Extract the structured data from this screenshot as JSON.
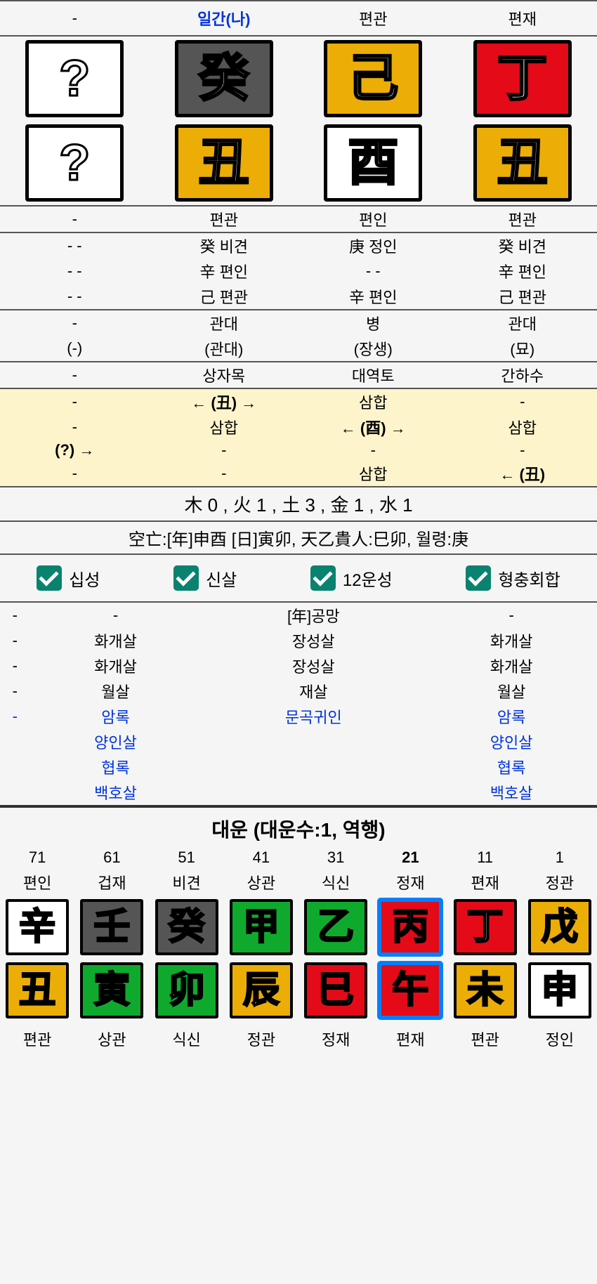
{
  "headers": [
    "-",
    "일간(나)",
    "편관",
    "편재"
  ],
  "pillars_top": [
    {
      "char": "?",
      "cls": "bg-white"
    },
    {
      "char": "癸",
      "cls": "bg-gray"
    },
    {
      "char": "己",
      "cls": "bg-yellow"
    },
    {
      "char": "丁",
      "cls": "bg-red"
    }
  ],
  "pillars_bot": [
    {
      "char": "?",
      "cls": "bg-white"
    },
    {
      "char": "丑",
      "cls": "bg-yellow"
    },
    {
      "char": "酉",
      "cls": "bg-white"
    },
    {
      "char": "丑",
      "cls": "bg-yellow"
    }
  ],
  "r1": [
    "-",
    "편관",
    "편인",
    "편관"
  ],
  "r2a": [
    "- -",
    "癸 비견",
    "庚 정인",
    "癸 비견"
  ],
  "r2b": [
    "- -",
    "辛 편인",
    "- -",
    "辛 편인"
  ],
  "r2c": [
    "- -",
    "己 편관",
    "辛 편인",
    "己 편관"
  ],
  "r3a": [
    "-",
    "관대",
    "병",
    "관대"
  ],
  "r3b": [
    "(-)",
    "(관대)",
    "(장생)",
    "(묘)"
  ],
  "r4": [
    "-",
    "상자목",
    "대역토",
    "간하수"
  ],
  "y1": [
    "-",
    "← (丑) →",
    "삼합",
    "-"
  ],
  "y2": [
    "-",
    "삼합",
    "← (酉) →",
    "삼합"
  ],
  "y3": [
    "(?) →",
    "-",
    "-",
    "-"
  ],
  "y4": [
    "-",
    "-",
    "삼합",
    "← (丑)"
  ],
  "elements": "木 0 , 火 1 , 土 3 , 金 1 , 水 1",
  "gongmang": "空亡:[年]申酉 [日]寅卯, 天乙貴人:巳卯, 월령:庚",
  "checks": [
    "십성",
    "신살",
    "12운성",
    "형충회합"
  ],
  "s1": [
    "-",
    "-",
    "[年]공망",
    "-"
  ],
  "s2": [
    "-",
    "화개살",
    "장성살",
    "화개살"
  ],
  "s3": [
    "-",
    "화개살",
    "장성살",
    "화개살"
  ],
  "s4": [
    "-",
    "월살",
    "재살",
    "월살"
  ],
  "b1": [
    "-",
    "암록",
    "문곡귀인",
    "암록"
  ],
  "b2": [
    "",
    "양인살",
    "",
    "양인살"
  ],
  "b3": [
    "",
    "협록",
    "",
    "협록"
  ],
  "b4": [
    "",
    "백호살",
    "",
    "백호살"
  ],
  "dw_title": "대운 (대운수:1, 역행)",
  "dw_ages": [
    "71",
    "61",
    "51",
    "41",
    "31",
    "21",
    "11",
    "1"
  ],
  "dw_top_lbl": [
    "편인",
    "겁재",
    "비견",
    "상관",
    "식신",
    "정재",
    "편재",
    "정관"
  ],
  "dw_top": [
    {
      "c": "辛",
      "cls": "bg-white"
    },
    {
      "c": "壬",
      "cls": "bg-gray"
    },
    {
      "c": "癸",
      "cls": "bg-gray"
    },
    {
      "c": "甲",
      "cls": "bg-green"
    },
    {
      "c": "乙",
      "cls": "bg-green"
    },
    {
      "c": "丙",
      "cls": "bg-red",
      "sel": true
    },
    {
      "c": "丁",
      "cls": "bg-red"
    },
    {
      "c": "戊",
      "cls": "bg-yellow"
    }
  ],
  "dw_bot": [
    {
      "c": "丑",
      "cls": "bg-yellow"
    },
    {
      "c": "寅",
      "cls": "bg-green"
    },
    {
      "c": "卯",
      "cls": "bg-green"
    },
    {
      "c": "辰",
      "cls": "bg-yellow"
    },
    {
      "c": "巳",
      "cls": "bg-red"
    },
    {
      "c": "午",
      "cls": "bg-red",
      "sel": true
    },
    {
      "c": "未",
      "cls": "bg-yellow"
    },
    {
      "c": "申",
      "cls": "bg-white"
    }
  ],
  "dw_bot_lbl": [
    "편관",
    "상관",
    "식신",
    "정관",
    "정재",
    "편재",
    "편관",
    "정인"
  ],
  "selected_index": 5
}
